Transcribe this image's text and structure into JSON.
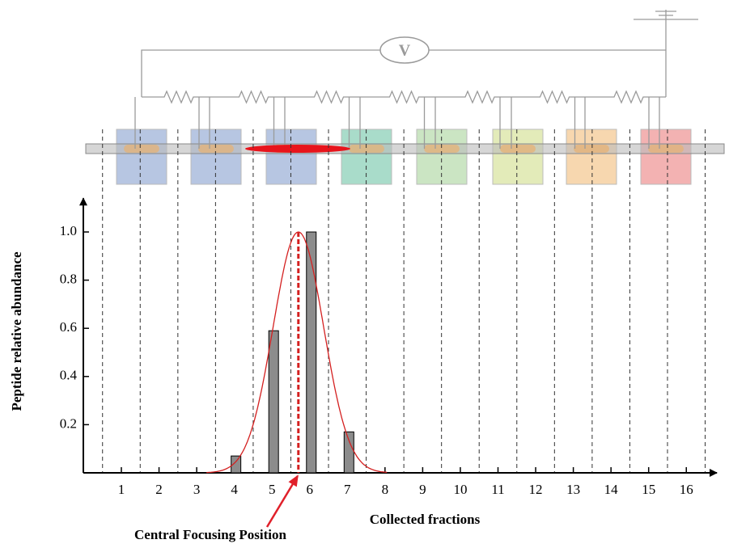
{
  "chart_data": {
    "type": "bar",
    "x_label": "Collected fractions",
    "y_label": "Peptide relative abundance",
    "annotation": "Central Focusing Position",
    "categories": [
      "1",
      "2",
      "3",
      "4",
      "5",
      "6",
      "7",
      "8",
      "9",
      "10",
      "11",
      "12",
      "13",
      "14",
      "15",
      "16"
    ],
    "values": [
      0,
      0,
      0,
      0.07,
      0.59,
      1.0,
      0.17,
      0,
      0,
      0,
      0,
      0,
      0,
      0,
      0,
      0
    ],
    "color": "#8c8c8c",
    "fit": {
      "center": 5.7,
      "sigma": 0.67,
      "color": "#d42020"
    },
    "ylim": [
      0,
      1.14
    ],
    "yticks": [
      0.2,
      0.4,
      0.6,
      0.8,
      {
        "value": 1,
        "label": "1.0"
      }
    ],
    "voltmeter": "V"
  }
}
